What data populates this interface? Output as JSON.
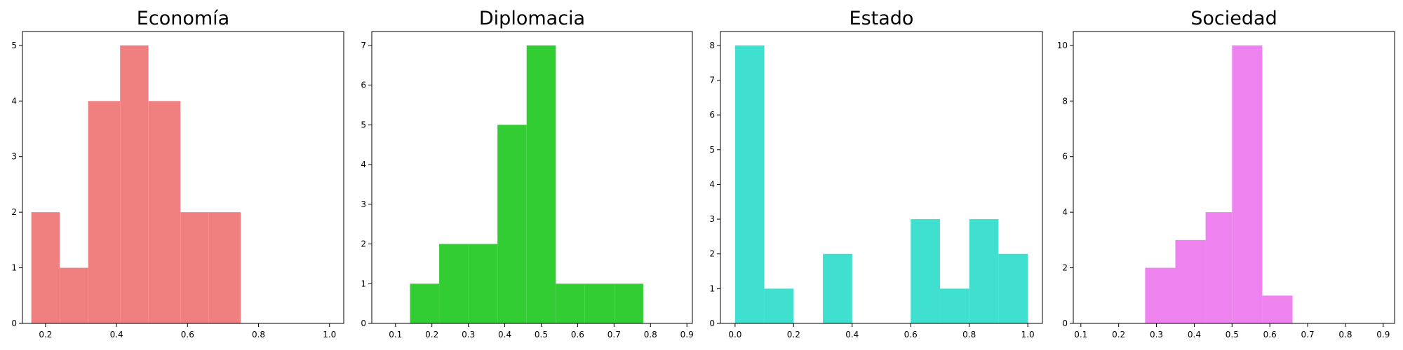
{
  "chart_data": [
    {
      "type": "bar",
      "title": "Economía",
      "color": "#f08080",
      "bars": [
        {
          "x0": 0.16,
          "x1": 0.24,
          "value": 2
        },
        {
          "x0": 0.24,
          "x1": 0.32,
          "value": 1
        },
        {
          "x0": 0.32,
          "x1": 0.41,
          "value": 4
        },
        {
          "x0": 0.41,
          "x1": 0.49,
          "value": 5
        },
        {
          "x0": 0.49,
          "x1": 0.58,
          "value": 4
        },
        {
          "x0": 0.58,
          "x1": 0.66,
          "value": 2
        },
        {
          "x0": 0.66,
          "x1": 0.75,
          "value": 2
        }
      ],
      "xlim": [
        0.135,
        1.04
      ],
      "ylim": [
        0,
        5.25
      ],
      "xticks": [
        0.2,
        0.4,
        0.6,
        0.8,
        1.0
      ],
      "xtick_labels": [
        "0.2",
        "0.4",
        "0.6",
        "0.8",
        "1.0"
      ],
      "yticks": [
        0,
        1,
        2,
        3,
        4,
        5
      ],
      "ytick_labels": [
        "0",
        "1",
        "2",
        "3",
        "4",
        "5"
      ]
    },
    {
      "type": "bar",
      "title": "Diplomacia",
      "color": "#32cd32",
      "bars": [
        {
          "x0": 0.14,
          "x1": 0.22,
          "value": 1
        },
        {
          "x0": 0.22,
          "x1": 0.3,
          "value": 2
        },
        {
          "x0": 0.3,
          "x1": 0.38,
          "value": 2
        },
        {
          "x0": 0.38,
          "x1": 0.46,
          "value": 5
        },
        {
          "x0": 0.46,
          "x1": 0.54,
          "value": 7
        },
        {
          "x0": 0.54,
          "x1": 0.62,
          "value": 1
        },
        {
          "x0": 0.62,
          "x1": 0.7,
          "value": 1
        },
        {
          "x0": 0.7,
          "x1": 0.78,
          "value": 1
        }
      ],
      "xlim": [
        0.035,
        0.915
      ],
      "ylim": [
        0,
        7.35
      ],
      "xticks": [
        0.1,
        0.2,
        0.3,
        0.4,
        0.5,
        0.6,
        0.7,
        0.8,
        0.9
      ],
      "xtick_labels": [
        "0.1",
        "0.2",
        "0.3",
        "0.4",
        "0.5",
        "0.6",
        "0.7",
        "0.8",
        "0.9"
      ],
      "yticks": [
        0,
        1,
        2,
        3,
        4,
        5,
        6,
        7
      ],
      "ytick_labels": [
        "0",
        "1",
        "2",
        "3",
        "4",
        "5",
        "6",
        "7"
      ]
    },
    {
      "type": "bar",
      "title": "Estado",
      "color": "#40e0d0",
      "bars": [
        {
          "x0": 0.0,
          "x1": 0.1,
          "value": 8
        },
        {
          "x0": 0.1,
          "x1": 0.2,
          "value": 1
        },
        {
          "x0": 0.2,
          "x1": 0.3,
          "value": 0
        },
        {
          "x0": 0.3,
          "x1": 0.4,
          "value": 2
        },
        {
          "x0": 0.4,
          "x1": 0.5,
          "value": 0
        },
        {
          "x0": 0.5,
          "x1": 0.6,
          "value": 0
        },
        {
          "x0": 0.6,
          "x1": 0.7,
          "value": 3
        },
        {
          "x0": 0.7,
          "x1": 0.8,
          "value": 1
        },
        {
          "x0": 0.8,
          "x1": 0.9,
          "value": 3
        },
        {
          "x0": 0.9,
          "x1": 1.0,
          "value": 2
        }
      ],
      "xlim": [
        -0.05,
        1.05
      ],
      "ylim": [
        0,
        8.4
      ],
      "xticks": [
        0.0,
        0.2,
        0.4,
        0.6,
        0.8,
        1.0
      ],
      "xtick_labels": [
        "0.0",
        "0.2",
        "0.4",
        "0.6",
        "0.8",
        "1.0"
      ],
      "yticks": [
        0,
        1,
        2,
        3,
        4,
        5,
        6,
        7,
        8
      ],
      "ytick_labels": [
        "0",
        "1",
        "2",
        "3",
        "4",
        "5",
        "6",
        "7",
        "8"
      ]
    },
    {
      "type": "bar",
      "title": "Sociedad",
      "color": "#ee82ee",
      "bars": [
        {
          "x0": 0.27,
          "x1": 0.35,
          "value": 2
        },
        {
          "x0": 0.35,
          "x1": 0.43,
          "value": 3
        },
        {
          "x0": 0.43,
          "x1": 0.5,
          "value": 4
        },
        {
          "x0": 0.5,
          "x1": 0.58,
          "value": 10
        },
        {
          "x0": 0.58,
          "x1": 0.66,
          "value": 1
        }
      ],
      "xlim": [
        0.08,
        0.93
      ],
      "ylim": [
        0,
        10.5
      ],
      "xticks": [
        0.1,
        0.2,
        0.3,
        0.4,
        0.5,
        0.6,
        0.7,
        0.8,
        0.9
      ],
      "xtick_labels": [
        "0.1",
        "0.2",
        "0.3",
        "0.4",
        "0.5",
        "0.6",
        "0.7",
        "0.8",
        "0.9"
      ],
      "yticks": [
        0,
        2,
        4,
        6,
        8,
        10
      ],
      "ytick_labels": [
        "0",
        "2",
        "4",
        "6",
        "8",
        "10"
      ]
    }
  ]
}
